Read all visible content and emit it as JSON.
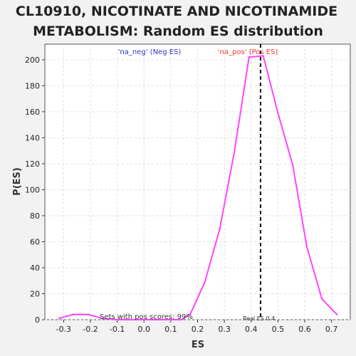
{
  "chart_data": {
    "type": "line",
    "title_line1": "CL10910, NICOTINATE AND NICOTINAMIDE",
    "title_line2": "METABOLISM: Random ES distribution",
    "xlabel": "ES",
    "ylabel": "P(ES)",
    "xlim": [
      -0.37,
      0.77
    ],
    "ylim": [
      0,
      212
    ],
    "x_ticks": [
      "-0.3",
      "-0.2",
      "-0.1",
      "0.0",
      "0.1",
      "0.2",
      "0.3",
      "0.4",
      "0.5",
      "0.6",
      "0.7"
    ],
    "x_tick_values": [
      -0.3,
      -0.2,
      -0.1,
      0.0,
      0.1,
      0.2,
      0.3,
      0.4,
      0.5,
      0.6,
      0.7
    ],
    "y_ticks": [
      "0",
      "20",
      "40",
      "60",
      "80",
      "100",
      "120",
      "140",
      "160",
      "180",
      "200"
    ],
    "y_tick_values": [
      0,
      20,
      40,
      60,
      80,
      100,
      120,
      140,
      160,
      180,
      200
    ],
    "grid": true,
    "series": [
      {
        "color": "#ff44ff",
        "x": [
          -0.317,
          -0.265,
          -0.208,
          -0.155,
          -0.1,
          -0.05,
          0.0,
          0.05,
          0.1,
          0.14,
          0.172,
          0.227,
          0.283,
          0.337,
          0.392,
          0.445,
          0.5,
          0.555,
          0.608,
          0.664,
          0.72
        ],
        "y": [
          1,
          4,
          4,
          1,
          0,
          0,
          0,
          0,
          0,
          0,
          4,
          29,
          70,
          129,
          202,
          203,
          159,
          119,
          56,
          16,
          4
        ]
      }
    ],
    "real_es": 0.435,
    "real_es_label": "Real ES 0.4",
    "neg_label": "'na_neg' (Neg ES)",
    "pos_label": "'na_pos' (Pos ES)",
    "neg_color": "#3333cc",
    "pos_color": "#ee3333",
    "note": "Sets with pos scores: 99%"
  }
}
